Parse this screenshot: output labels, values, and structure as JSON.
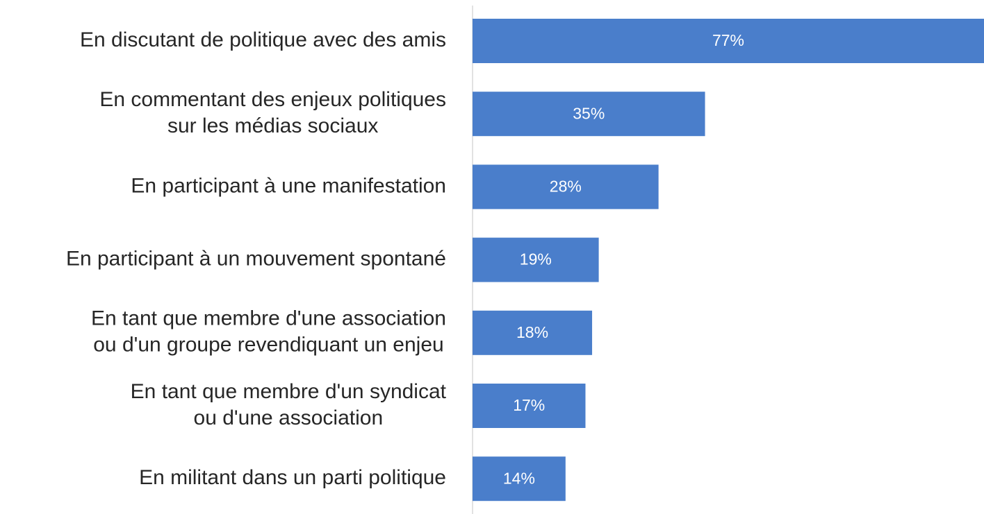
{
  "chart_data": {
    "type": "barh",
    "categories": [
      [
        "En discutant de politique avec des amis"
      ],
      [
        "En commentant des enjeux politiques",
        "sur les médias sociaux"
      ],
      [
        "En participant à une manifestation"
      ],
      [
        "En participant à un mouvement spontané"
      ],
      [
        "En tant que membre d'une association",
        "ou d'un groupe revendiquant un enjeu"
      ],
      [
        "En tant que membre d'un syndicat",
        "ou d'une association"
      ],
      [
        "En militant dans un parti politique"
      ]
    ],
    "values": [
      77,
      35,
      28,
      19,
      18,
      17,
      14
    ],
    "value_labels": [
      "77%",
      "35%",
      "28%",
      "19%",
      "18%",
      "17%",
      "14%"
    ],
    "color": "#4a7ecb",
    "xlim": [
      0,
      77
    ]
  }
}
